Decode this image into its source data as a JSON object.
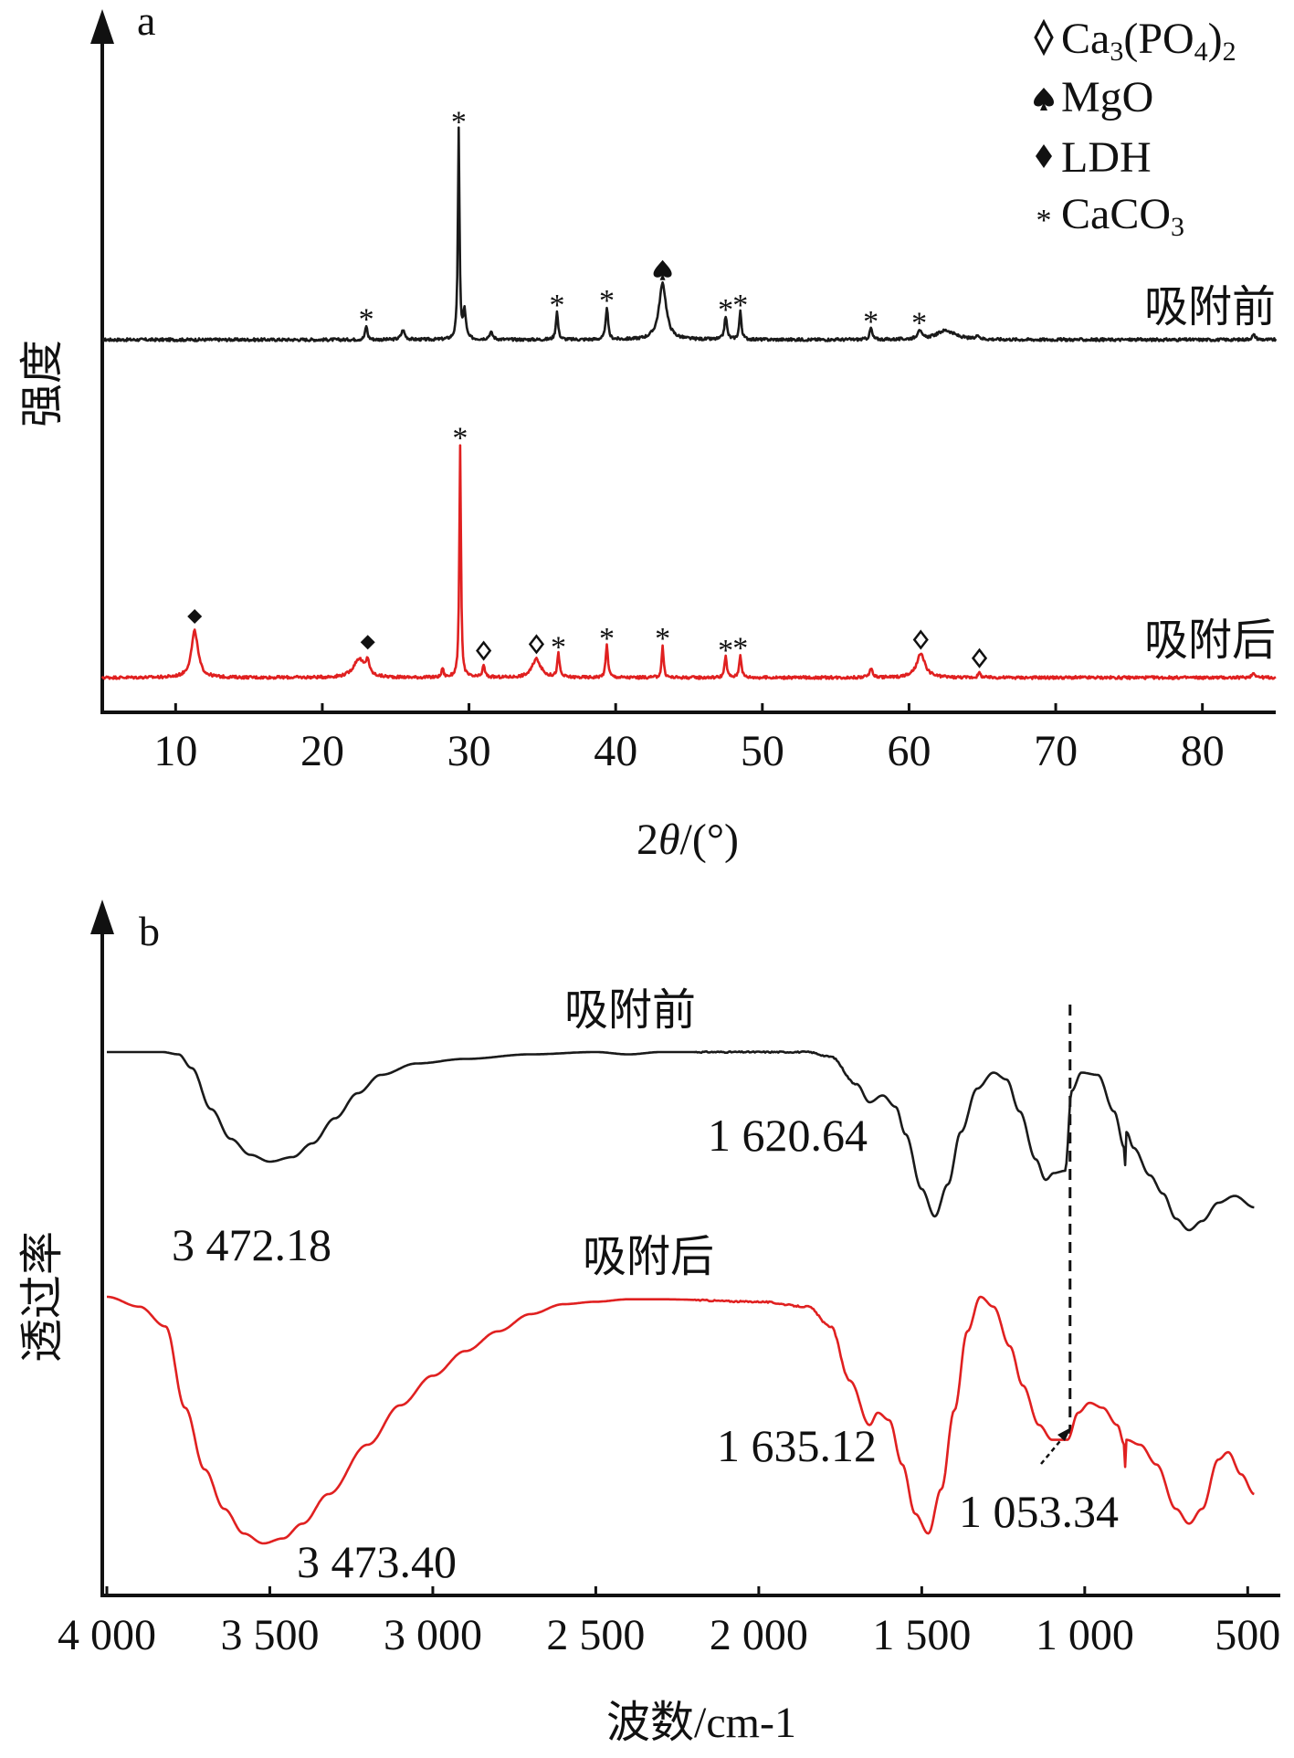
{
  "colors": {
    "axis": "#111111",
    "before": "#1a1a1a",
    "after": "#e02020"
  },
  "chart_data": [
    {
      "panel_label": "a",
      "type": "line",
      "xlabel": "2θ/(°)",
      "ylabel": "强度",
      "xlim": [
        5,
        85
      ],
      "xticks": [
        10,
        20,
        30,
        40,
        50,
        60,
        70,
        80
      ],
      "grid": false,
      "legend_position": "top-right",
      "legend": [
        {
          "marker": "open-diamond",
          "label": "Ca3(PO4)2"
        },
        {
          "marker": "spade",
          "label": "MgO"
        },
        {
          "marker": "diamond",
          "label": "LDH"
        },
        {
          "marker": "asterisk",
          "label": "CaCO3"
        }
      ],
      "series": [
        {
          "name": "吸附前",
          "color_key": "before",
          "baseline": 0.0,
          "peaks": [
            [
              23.0,
              0.06,
              0.18
            ],
            [
              25.5,
              0.04,
              0.3
            ],
            [
              29.3,
              0.9,
              0.13
            ],
            [
              29.7,
              0.12,
              0.2
            ],
            [
              31.5,
              0.03,
              0.3
            ],
            [
              36.0,
              0.12,
              0.18
            ],
            [
              39.4,
              0.14,
              0.18
            ],
            [
              43.2,
              0.24,
              0.6
            ],
            [
              47.5,
              0.1,
              0.2
            ],
            [
              48.5,
              0.12,
              0.18
            ],
            [
              57.4,
              0.05,
              0.2
            ],
            [
              60.7,
              0.04,
              0.3
            ],
            [
              62.5,
              0.04,
              1.5
            ],
            [
              64.7,
              0.02,
              0.2
            ],
            [
              83.5,
              0.02,
              0.3
            ]
          ],
          "markers": [
            [
              23.0,
              "asterisk"
            ],
            [
              29.3,
              "asterisk"
            ],
            [
              36.0,
              "asterisk"
            ],
            [
              39.4,
              "asterisk"
            ],
            [
              43.2,
              "spade"
            ],
            [
              47.5,
              "asterisk"
            ],
            [
              48.5,
              "asterisk"
            ],
            [
              57.4,
              "asterisk"
            ],
            [
              60.7,
              "asterisk"
            ]
          ]
        },
        {
          "name": "吸附后",
          "color_key": "after",
          "baseline": 0.0,
          "peaks": [
            [
              11.3,
              0.2,
              0.55
            ],
            [
              22.5,
              0.08,
              0.9
            ],
            [
              23.1,
              0.06,
              0.25
            ],
            [
              28.2,
              0.04,
              0.15
            ],
            [
              29.4,
              1.0,
              0.13
            ],
            [
              31.0,
              0.05,
              0.2
            ],
            [
              34.6,
              0.08,
              0.7
            ],
            [
              36.1,
              0.1,
              0.18
            ],
            [
              39.4,
              0.14,
              0.18
            ],
            [
              43.2,
              0.14,
              0.15
            ],
            [
              47.5,
              0.09,
              0.18
            ],
            [
              48.5,
              0.1,
              0.18
            ],
            [
              57.4,
              0.04,
              0.25
            ],
            [
              60.8,
              0.1,
              0.7
            ],
            [
              64.8,
              0.02,
              0.2
            ],
            [
              83.5,
              0.02,
              0.3
            ]
          ],
          "markers": [
            [
              11.3,
              "diamond"
            ],
            [
              23.1,
              "diamond"
            ],
            [
              29.4,
              "asterisk"
            ],
            [
              31.0,
              "open-diamond"
            ],
            [
              34.6,
              "open-diamond"
            ],
            [
              36.1,
              "asterisk"
            ],
            [
              39.4,
              "asterisk"
            ],
            [
              43.2,
              "asterisk"
            ],
            [
              47.5,
              "asterisk"
            ],
            [
              48.5,
              "asterisk"
            ],
            [
              60.8,
              "open-diamond"
            ],
            [
              64.8,
              "open-diamond"
            ]
          ]
        }
      ]
    },
    {
      "panel_label": "b",
      "type": "line",
      "xlabel": "波数/cm-1",
      "ylabel": "透过率",
      "xlim": [
        4000,
        400
      ],
      "xticks": [
        4000,
        3500,
        3000,
        2500,
        2000,
        1500,
        1000,
        500
      ],
      "xtick_labels": [
        "4 000",
        "3 500",
        "3 000",
        "2 500",
        "2 000",
        "1 500",
        "1 000",
        "500"
      ],
      "grid": false,
      "reference_line_x": 1045,
      "series": [
        {
          "name": "吸附前",
          "color_key": "before",
          "points": [
            [
              4000,
              0.0
            ],
            [
              3830,
              0.0
            ],
            [
              3780,
              -0.01
            ],
            [
              3740,
              -0.07
            ],
            [
              3680,
              -0.25
            ],
            [
              3620,
              -0.38
            ],
            [
              3560,
              -0.45
            ],
            [
              3500,
              -0.48
            ],
            [
              3430,
              -0.46
            ],
            [
              3370,
              -0.4
            ],
            [
              3300,
              -0.29
            ],
            [
              3230,
              -0.18
            ],
            [
              3160,
              -0.1
            ],
            [
              3050,
              -0.05
            ],
            [
              2900,
              -0.03
            ],
            [
              2700,
              -0.01
            ],
            [
              2500,
              0.0
            ],
            [
              2400,
              -0.01
            ],
            [
              2300,
              0.0
            ],
            [
              2000,
              0.0
            ],
            [
              1850,
              0.0
            ],
            [
              1780,
              -0.02
            ],
            [
              1700,
              -0.14
            ],
            [
              1660,
              -0.22
            ],
            [
              1620,
              -0.19
            ],
            [
              1580,
              -0.24
            ],
            [
              1550,
              -0.36
            ],
            [
              1500,
              -0.6
            ],
            [
              1460,
              -0.72
            ],
            [
              1420,
              -0.58
            ],
            [
              1380,
              -0.35
            ],
            [
              1330,
              -0.16
            ],
            [
              1280,
              -0.09
            ],
            [
              1240,
              -0.12
            ],
            [
              1200,
              -0.26
            ],
            [
              1150,
              -0.47
            ],
            [
              1120,
              -0.56
            ],
            [
              1095,
              -0.53
            ],
            [
              1060,
              -0.52
            ],
            [
              1040,
              -0.17
            ],
            [
              1010,
              -0.09
            ],
            [
              960,
              -0.1
            ],
            [
              910,
              -0.26
            ],
            [
              878,
              -0.42
            ],
            [
              875,
              -0.52
            ],
            [
              872,
              -0.35
            ],
            [
              850,
              -0.42
            ],
            [
              800,
              -0.54
            ],
            [
              760,
              -0.62
            ],
            [
              720,
              -0.73
            ],
            [
              680,
              -0.78
            ],
            [
              640,
              -0.74
            ],
            [
              590,
              -0.66
            ],
            [
              540,
              -0.63
            ],
            [
              480,
              -0.68
            ]
          ]
        },
        {
          "name": "吸附后",
          "color_key": "after",
          "points": [
            [
              4000,
              0.0
            ],
            [
              3900,
              -0.04
            ],
            [
              3820,
              -0.12
            ],
            [
              3760,
              -0.45
            ],
            [
              3700,
              -0.7
            ],
            [
              3640,
              -0.86
            ],
            [
              3580,
              -0.96
            ],
            [
              3520,
              -1.0
            ],
            [
              3460,
              -0.98
            ],
            [
              3400,
              -0.92
            ],
            [
              3320,
              -0.8
            ],
            [
              3200,
              -0.6
            ],
            [
              3100,
              -0.44
            ],
            [
              3000,
              -0.32
            ],
            [
              2900,
              -0.22
            ],
            [
              2800,
              -0.14
            ],
            [
              2700,
              -0.07
            ],
            [
              2600,
              -0.03
            ],
            [
              2500,
              -0.02
            ],
            [
              2400,
              -0.01
            ],
            [
              2300,
              -0.01
            ],
            [
              2000,
              -0.02
            ],
            [
              1850,
              -0.04
            ],
            [
              1780,
              -0.12
            ],
            [
              1720,
              -0.34
            ],
            [
              1660,
              -0.52
            ],
            [
              1635,
              -0.47
            ],
            [
              1600,
              -0.5
            ],
            [
              1560,
              -0.68
            ],
            [
              1520,
              -0.88
            ],
            [
              1480,
              -0.96
            ],
            [
              1440,
              -0.78
            ],
            [
              1400,
              -0.46
            ],
            [
              1360,
              -0.14
            ],
            [
              1320,
              0.0
            ],
            [
              1280,
              -0.04
            ],
            [
              1230,
              -0.2
            ],
            [
              1190,
              -0.36
            ],
            [
              1140,
              -0.52
            ],
            [
              1100,
              -0.58
            ],
            [
              1053,
              -0.58
            ],
            [
              1020,
              -0.47
            ],
            [
              985,
              -0.43
            ],
            [
              945,
              -0.45
            ],
            [
              900,
              -0.52
            ],
            [
              878,
              -0.6
            ],
            [
              875,
              -0.72
            ],
            [
              872,
              -0.58
            ],
            [
              830,
              -0.6
            ],
            [
              780,
              -0.68
            ],
            [
              720,
              -0.86
            ],
            [
              680,
              -0.92
            ],
            [
              640,
              -0.86
            ],
            [
              590,
              -0.66
            ],
            [
              560,
              -0.63
            ],
            [
              520,
              -0.72
            ],
            [
              480,
              -0.8
            ]
          ]
        }
      ],
      "annotations": [
        {
          "label": "1 620.64",
          "series": "吸附前",
          "x": 1620.64
        },
        {
          "label": "3 472.18",
          "series": "吸附前",
          "x": 3472.18
        },
        {
          "label": "1 635.12",
          "series": "吸附后",
          "x": 1635.12
        },
        {
          "label": "3 473.40",
          "series": "吸附后",
          "x": 3473.4
        },
        {
          "label": "1 053.34",
          "series": "吸附后",
          "x": 1053.34
        }
      ]
    }
  ]
}
